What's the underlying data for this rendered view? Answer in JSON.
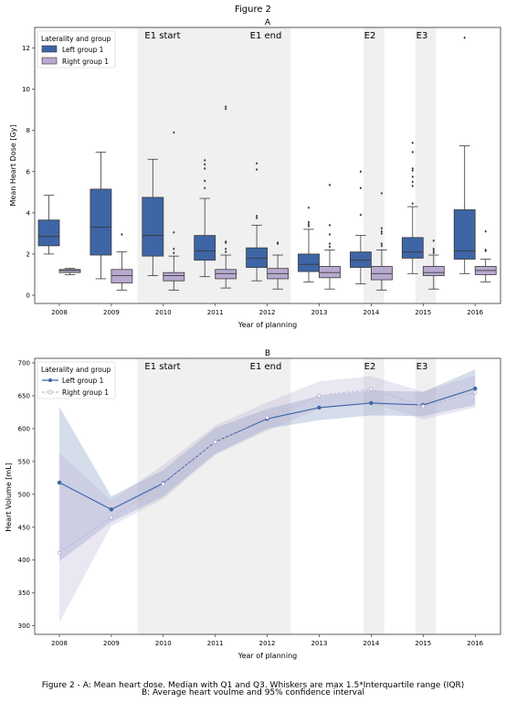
{
  "figure_title": "Figure 2",
  "caption_line1": "Figure 2 - A: Mean heart dose. Median with Q1 and Q3. Whiskers are max 1.5*Interquartile range (IQR)",
  "caption_line2": "B: Average heart voulme and 95% confidence interval",
  "colors": {
    "left": "#3e65a6",
    "right": "#b8a9cf",
    "shade": "#f0f0f0",
    "left_line": "#3e65a6",
    "right_line": "#c2b8d8"
  },
  "chart_data": [
    {
      "panel": "A",
      "type": "box",
      "title": "A",
      "xlabel": "Year of planning",
      "ylabel": "Mean Heart Dose [Gy]",
      "ylim": [
        -0.4,
        13.0
      ],
      "yticks": [
        0,
        2,
        4,
        6,
        8,
        10,
        12
      ],
      "categories": [
        "2008",
        "2009",
        "2010",
        "2011",
        "2012",
        "2013",
        "2014",
        "2015",
        "2016"
      ],
      "legend": {
        "title": "Laterality and group",
        "position": "top-left",
        "entries": [
          "Left group 1",
          "Right group 1"
        ]
      },
      "events": [
        {
          "label": "E1 start",
          "from": 1.5,
          "to": 2.5
        },
        {
          "label": "E1 end",
          "from": 2.5,
          "to": 4.45
        },
        {
          "label": "E2",
          "from": 5.85,
          "to": 6.25
        },
        {
          "label": "E3",
          "from": 6.85,
          "to": 7.25
        }
      ],
      "series": [
        {
          "name": "Left group 1",
          "boxes": [
            {
              "min": 2.0,
              "q1": 2.4,
              "median": 2.85,
              "q3": 3.65,
              "max": 4.85,
              "outliers": []
            },
            {
              "min": 0.8,
              "q1": 1.95,
              "median": 3.3,
              "q3": 5.15,
              "max": 6.95,
              "outliers": []
            },
            {
              "min": 0.95,
              "q1": 1.9,
              "median": 2.9,
              "q3": 4.75,
              "max": 6.6,
              "outliers": []
            },
            {
              "min": 0.9,
              "q1": 1.7,
              "median": 2.15,
              "q3": 2.9,
              "max": 4.7,
              "outliers": [
                5.2,
                5.55,
                6.15,
                6.35,
                6.55
              ]
            },
            {
              "min": 0.7,
              "q1": 1.35,
              "median": 1.8,
              "q3": 2.3,
              "max": 3.4,
              "outliers": [
                3.75,
                3.85,
                6.1,
                6.4
              ]
            },
            {
              "min": 0.65,
              "q1": 1.15,
              "median": 1.5,
              "q3": 2.0,
              "max": 3.2,
              "outliers": [
                3.35,
                3.45,
                3.55,
                4.25
              ]
            },
            {
              "min": 0.55,
              "q1": 1.35,
              "median": 1.7,
              "q3": 2.1,
              "max": 2.9,
              "outliers": [
                3.9,
                5.2,
                6.0
              ]
            },
            {
              "min": 1.05,
              "q1": 1.8,
              "median": 2.1,
              "q3": 2.8,
              "max": 4.3,
              "outliers": [
                4.45,
                5.3,
                5.5,
                5.75,
                6.05,
                6.15,
                6.95,
                7.4
              ]
            },
            {
              "min": 1.05,
              "q1": 1.75,
              "median": 2.15,
              "q3": 4.15,
              "max": 7.25,
              "outliers": [
                12.5
              ]
            }
          ]
        },
        {
          "name": "Right group 1",
          "boxes": [
            {
              "min": 1.0,
              "q1": 1.1,
              "median": 1.2,
              "q3": 1.25,
              "max": 1.3,
              "outliers": []
            },
            {
              "min": 0.25,
              "q1": 0.6,
              "median": 0.95,
              "q3": 1.25,
              "max": 2.1,
              "outliers": [
                2.95
              ]
            },
            {
              "min": 0.25,
              "q1": 0.7,
              "median": 0.95,
              "q3": 1.1,
              "max": 1.9,
              "outliers": [
                2.05,
                2.25,
                3.05,
                7.9
              ]
            },
            {
              "min": 0.35,
              "q1": 0.8,
              "median": 1.05,
              "q3": 1.25,
              "max": 1.95,
              "outliers": [
                2.1,
                2.25,
                2.55,
                2.6,
                9.05,
                9.15
              ]
            },
            {
              "min": 0.3,
              "q1": 0.8,
              "median": 1.05,
              "q3": 1.3,
              "max": 1.95,
              "outliers": [
                2.5,
                2.55
              ]
            },
            {
              "min": 0.3,
              "q1": 0.85,
              "median": 1.1,
              "q3": 1.4,
              "max": 2.2,
              "outliers": [
                2.35,
                2.5,
                2.95,
                3.4,
                5.35
              ]
            },
            {
              "min": 0.25,
              "q1": 0.75,
              "median": 1.05,
              "q3": 1.4,
              "max": 2.2,
              "outliers": [
                2.4,
                2.5,
                3.0,
                3.1,
                3.25,
                4.95
              ]
            },
            {
              "min": 0.3,
              "q1": 0.95,
              "median": 1.1,
              "q3": 1.4,
              "max": 1.95,
              "outliers": [
                2.05,
                2.15,
                2.25,
                2.65
              ]
            },
            {
              "min": 0.65,
              "q1": 1.0,
              "median": 1.2,
              "q3": 1.4,
              "max": 1.75,
              "outliers": [
                2.15,
                2.2,
                3.1
              ]
            }
          ]
        }
      ]
    },
    {
      "panel": "B",
      "type": "line",
      "title": "B",
      "xlabel": "Year of planning",
      "ylabel": "Heart Volume [mL]",
      "ylim": [
        287,
        707
      ],
      "yticks": [
        300,
        350,
        400,
        450,
        500,
        550,
        600,
        650,
        700
      ],
      "x": [
        "2008",
        "2009",
        "2010",
        "2011",
        "2012",
        "2013",
        "2014",
        "2015",
        "2016"
      ],
      "legend": {
        "title": "Laterality and group",
        "position": "top-left",
        "entries": [
          "Left group 1",
          "Right group 1"
        ]
      },
      "events": [
        {
          "label": "E1 start",
          "from": 1.5,
          "to": 2.5
        },
        {
          "label": "E1 end",
          "from": 2.5,
          "to": 4.45
        },
        {
          "label": "E2",
          "from": 5.85,
          "to": 6.25
        },
        {
          "label": "E3",
          "from": 6.85,
          "to": 7.25
        }
      ],
      "series": [
        {
          "name": "Left group 1",
          "values": [
            518,
            477,
            517,
            580,
            615,
            632,
            639,
            636,
            661
          ],
          "ci_low": [
            398,
            458,
            497,
            562,
            600,
            613,
            620,
            619,
            636
          ],
          "ci_high": [
            633,
            497,
            537,
            601,
            630,
            650,
            658,
            656,
            690
          ]
        },
        {
          "name": "Right group 1",
          "values": [
            411,
            465,
            516,
            580,
            617,
            650,
            660,
            634,
            655
          ],
          "ci_low": [
            305,
            452,
            493,
            560,
            597,
            630,
            639,
            614,
            632
          ],
          "ci_high": [
            563,
            491,
            545,
            605,
            640,
            672,
            680,
            656,
            681
          ]
        }
      ]
    }
  ]
}
